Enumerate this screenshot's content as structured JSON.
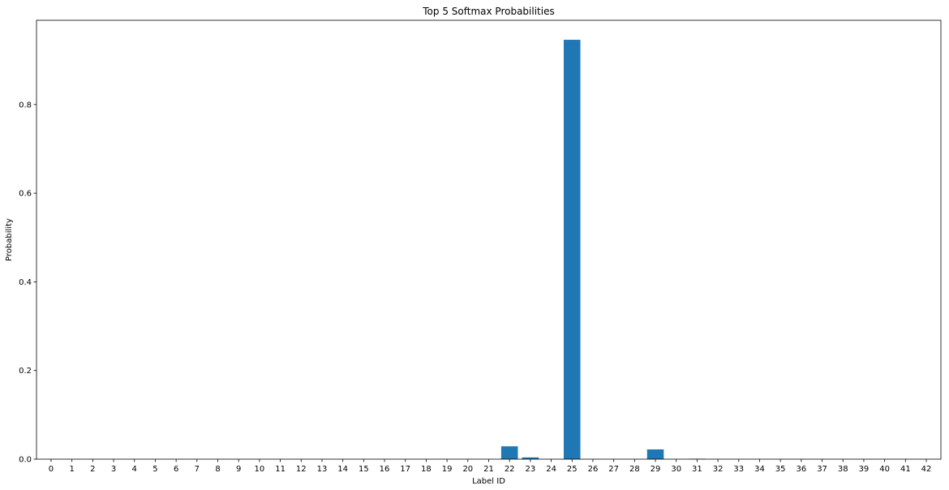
{
  "chart_data": {
    "type": "bar",
    "title": "Top 5 Softmax Probabilities",
    "xlabel": "Label ID",
    "ylabel": "Probability",
    "ylim": [
      0,
      0.99
    ],
    "yticks": [
      "0.0",
      "0.2",
      "0.4",
      "0.6",
      "0.8"
    ],
    "ytick_values": [
      0,
      0.2,
      0.4,
      0.6,
      0.8
    ],
    "grid": false,
    "bar_color": "#1f77b4",
    "categories": [
      "0",
      "1",
      "2",
      "3",
      "4",
      "5",
      "6",
      "7",
      "8",
      "9",
      "10",
      "11",
      "12",
      "13",
      "14",
      "15",
      "16",
      "17",
      "18",
      "19",
      "20",
      "21",
      "22",
      "23",
      "24",
      "25",
      "26",
      "27",
      "28",
      "29",
      "30",
      "31",
      "32",
      "33",
      "34",
      "35",
      "36",
      "37",
      "38",
      "39",
      "40",
      "41",
      "42"
    ],
    "values": [
      0,
      0,
      0,
      0,
      0,
      0,
      0,
      0,
      0,
      0,
      0,
      0,
      0,
      0,
      0,
      0,
      0,
      0,
      0,
      0,
      0,
      0,
      0.029,
      0.004,
      0,
      0.946,
      0,
      0,
      0,
      0.022,
      0,
      0.001,
      0,
      0,
      0,
      0,
      0,
      0,
      0,
      0,
      0,
      0,
      0
    ]
  }
}
